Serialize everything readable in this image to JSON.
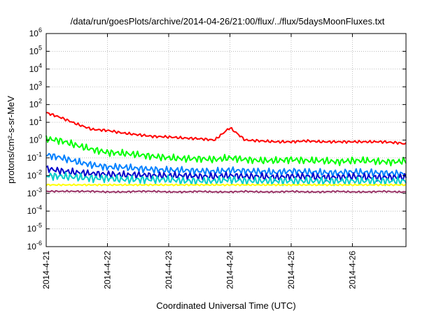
{
  "chart_data": {
    "type": "line",
    "title": "/data/run/goesPlots/archive/2014-04-26/21:00/flux/../flux/5daysMoonFluxes.txt",
    "xlabel": "Coordinated Universal Time (UTC)",
    "ylabel": "protons/cm²-s-sr-MeV",
    "yscale": "log",
    "ylim": [
      1e-06,
      1000000.0
    ],
    "xlim": [
      "2014-04-21 00:00",
      "2014-04-26 21:00"
    ],
    "grid": true,
    "y_ticks": [
      {
        "value": -6,
        "base": "10",
        "exp": "-6"
      },
      {
        "value": -5,
        "base": "10",
        "exp": "-5"
      },
      {
        "value": -4,
        "base": "10",
        "exp": "-4"
      },
      {
        "value": -3,
        "base": "10",
        "exp": "-3"
      },
      {
        "value": -2,
        "base": "10",
        "exp": "-2"
      },
      {
        "value": -1,
        "base": "10",
        "exp": "-1"
      },
      {
        "value": 0,
        "base": "10",
        "exp": "0"
      },
      {
        "value": 1,
        "base": "10",
        "exp": "1"
      },
      {
        "value": 2,
        "base": "10",
        "exp": "2"
      },
      {
        "value": 3,
        "base": "10",
        "exp": "3"
      },
      {
        "value": 4,
        "base": "10",
        "exp": "4"
      },
      {
        "value": 5,
        "base": "10",
        "exp": "5"
      },
      {
        "value": 6,
        "base": "10",
        "exp": "6"
      }
    ],
    "x_ticks": [
      {
        "day": 0,
        "label": "2014-4-21"
      },
      {
        "day": 1,
        "label": "2014-4-22"
      },
      {
        "day": 2,
        "label": "2014-4-23"
      },
      {
        "day": 3,
        "label": "2014-4-24"
      },
      {
        "day": 4,
        "label": "2014-4-25"
      },
      {
        "day": 5,
        "label": "2014-4-26"
      }
    ],
    "x_days": [
      0,
      0.25,
      0.5,
      0.75,
      1,
      1.25,
      1.5,
      1.75,
      2,
      2.25,
      2.5,
      2.75,
      3,
      3.25,
      3.5,
      3.75,
      4,
      4.25,
      4.5,
      4.75,
      5,
      5.25,
      5.5,
      5.75,
      5.875
    ],
    "series": [
      {
        "color": "#ff0000",
        "values": [
          35,
          18,
          8,
          4,
          3.5,
          2.5,
          2,
          1.6,
          1.5,
          1.3,
          1.2,
          1.0,
          5.0,
          1.0,
          0.9,
          0.8,
          0.8,
          0.9,
          0.8,
          0.8,
          0.8,
          0.8,
          0.8,
          0.7,
          0.6
        ]
      },
      {
        "color": "#00ff00",
        "values": [
          1.2,
          0.9,
          0.5,
          0.3,
          0.2,
          0.18,
          0.15,
          0.12,
          0.1,
          0.09,
          0.09,
          0.08,
          0.1,
          0.08,
          0.07,
          0.07,
          0.08,
          0.07,
          0.07,
          0.06,
          0.07,
          0.07,
          0.06,
          0.06,
          0.07
        ]
      },
      {
        "color": "#0080ff",
        "values": [
          0.15,
          0.1,
          0.06,
          0.04,
          0.03,
          0.03,
          0.025,
          0.022,
          0.02,
          0.02,
          0.018,
          0.017,
          0.02,
          0.018,
          0.017,
          0.015,
          0.018,
          0.016,
          0.015,
          0.014,
          0.016,
          0.015,
          0.014,
          0.013,
          0.012
        ]
      },
      {
        "color": "#0000cc",
        "values": [
          0.025,
          0.018,
          0.015,
          0.013,
          0.012,
          0.011,
          0.011,
          0.01,
          0.01,
          0.01,
          0.009,
          0.009,
          0.01,
          0.009,
          0.009,
          0.008,
          0.009,
          0.009,
          0.008,
          0.008,
          0.009,
          0.008,
          0.008,
          0.008,
          0.008
        ]
      },
      {
        "color": "#00cccc",
        "values": [
          0.01,
          0.009,
          0.008,
          0.007,
          0.007,
          0.006,
          0.006,
          0.006,
          0.006,
          0.005,
          0.005,
          0.005,
          0.006,
          0.005,
          0.005,
          0.005,
          0.005,
          0.005,
          0.005,
          0.005,
          0.005,
          0.005,
          0.005,
          0.005,
          0.005
        ]
      },
      {
        "color": "#ffff00",
        "values": [
          0.003,
          0.003,
          0.003,
          0.003,
          0.003,
          0.003,
          0.003,
          0.003,
          0.003,
          0.003,
          0.003,
          0.003,
          0.003,
          0.003,
          0.003,
          0.003,
          0.003,
          0.003,
          0.003,
          0.003,
          0.003,
          0.003,
          0.003,
          0.003,
          0.003
        ]
      },
      {
        "color": "#993366",
        "values": [
          0.0013,
          0.0013,
          0.0013,
          0.0013,
          0.0012,
          0.0012,
          0.0013,
          0.0013,
          0.0012,
          0.0012,
          0.0013,
          0.0012,
          0.0012,
          0.0013,
          0.0012,
          0.0012,
          0.0013,
          0.0012,
          0.0012,
          0.0013,
          0.0012,
          0.0012,
          0.0013,
          0.0012,
          0.0012
        ]
      }
    ]
  }
}
